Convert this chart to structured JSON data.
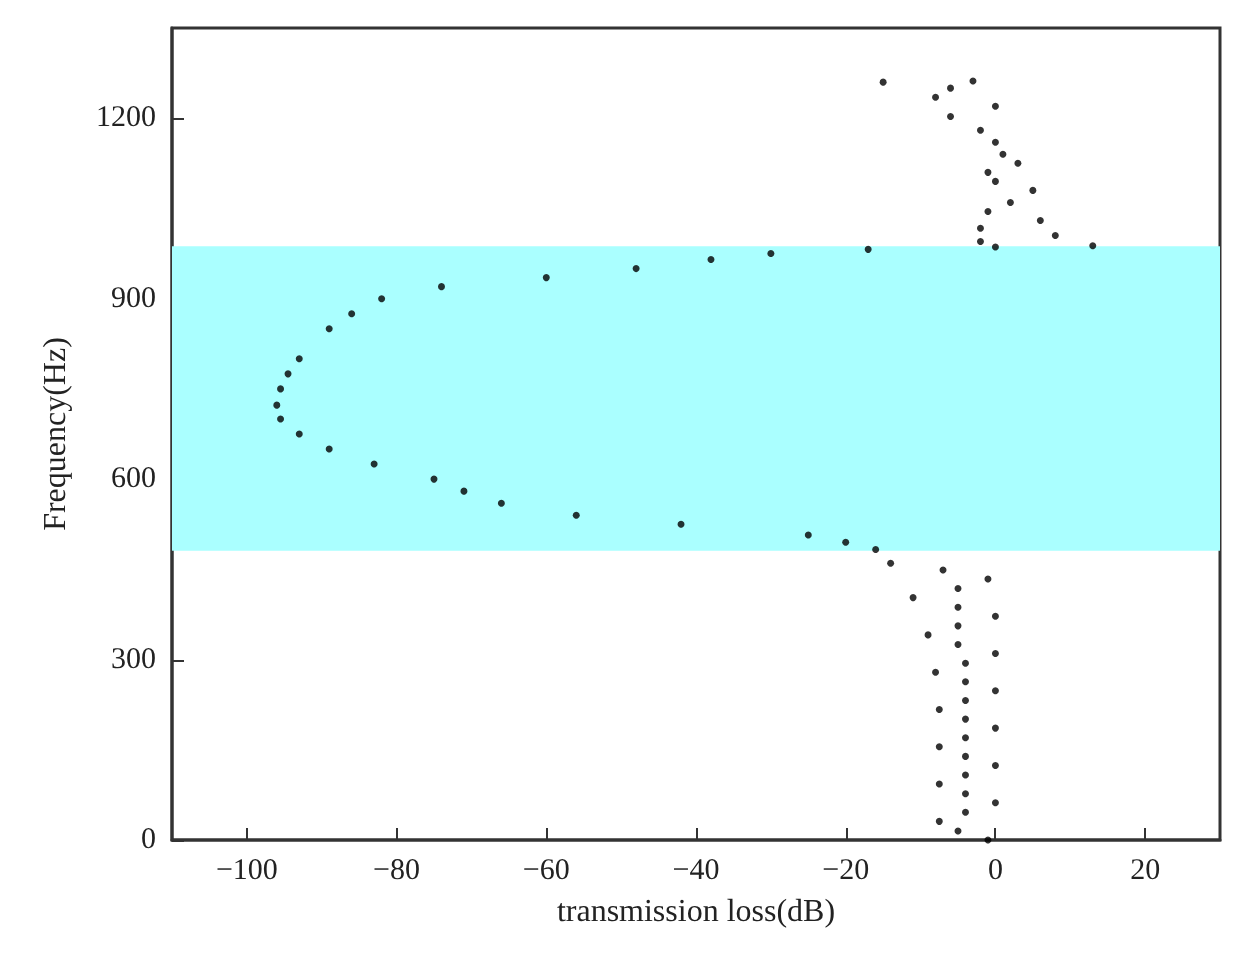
{
  "chart_data": {
    "type": "scatter",
    "xlabel": "transmission loss(dB)",
    "ylabel": "Frequency(Hz)",
    "xlim": [
      -110,
      30
    ],
    "ylim": [
      0,
      1350
    ],
    "xticks": [
      -100,
      -80,
      -60,
      -40,
      -20,
      0,
      20
    ],
    "yticks": [
      0,
      300,
      600,
      900,
      1200
    ],
    "marker": "circle",
    "bands": [
      {
        "axis": "y",
        "from": 481,
        "to": 987,
        "color": "#aaffff"
      }
    ],
    "series": [
      {
        "color": "#000000",
        "x": [
          -1,
          -5,
          -7.5,
          -4,
          0,
          -4,
          -7.5,
          -4,
          0,
          -4,
          -7.5,
          -4,
          0,
          -4,
          -7.5,
          -4,
          0,
          -4,
          -8,
          -4,
          0,
          -5,
          -9,
          -5,
          0,
          -5,
          -11,
          -5,
          -1,
          -7,
          -14,
          -16,
          -20,
          -25,
          -42,
          -56,
          -66,
          -71,
          -75,
          -83,
          -89,
          -93,
          -95.5,
          -96,
          -95.5,
          -94.5,
          -93,
          -89,
          -86,
          -82,
          -74,
          -60,
          -48,
          -38,
          -30,
          -17,
          0,
          13,
          -2,
          8,
          -2,
          6,
          -1,
          2,
          5,
          0,
          -1,
          3,
          1,
          0,
          -2,
          -6,
          0,
          -8,
          -6,
          -15,
          -3
        ],
        "values": [
          0,
          15,
          31,
          46,
          62,
          77,
          93,
          108,
          124,
          139,
          155,
          170,
          186,
          201,
          217,
          232,
          248,
          263,
          279,
          294,
          310,
          325,
          341,
          356,
          372,
          387,
          403,
          418,
          434,
          449,
          460,
          483,
          495,
          507,
          525,
          540,
          560,
          580,
          600,
          625,
          650,
          675,
          700,
          723,
          750,
          775,
          800,
          850,
          875,
          900,
          920,
          935,
          950,
          965,
          975,
          982,
          986,
          988,
          995,
          1005,
          1017,
          1030,
          1045,
          1060,
          1080,
          1095,
          1110,
          1125,
          1140,
          1160,
          1180,
          1203,
          1220,
          1235,
          1250,
          1260,
          1262
        ]
      }
    ]
  }
}
